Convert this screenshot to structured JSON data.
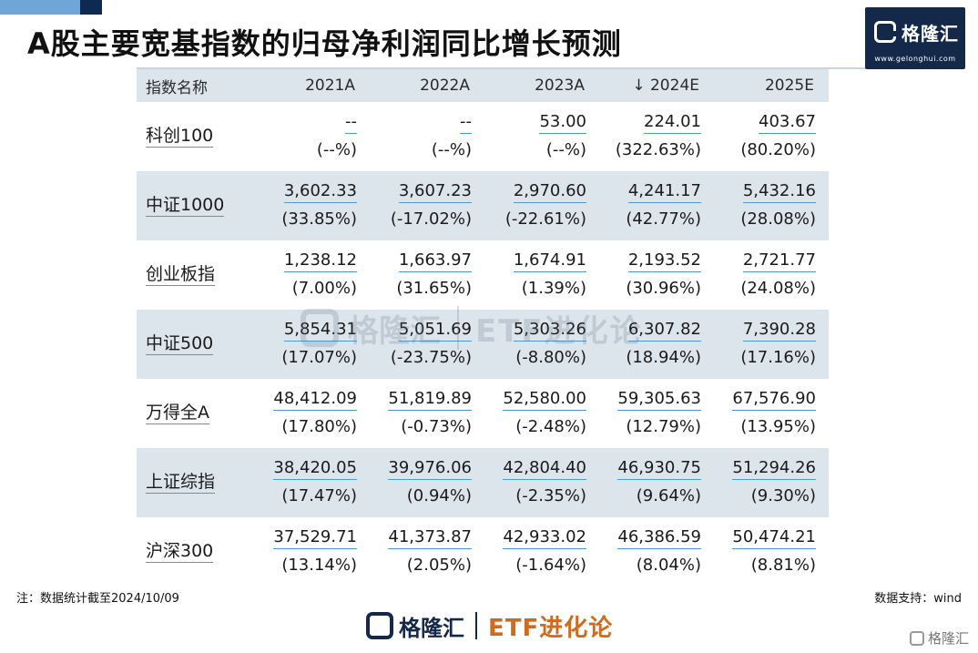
{
  "title": "A股主要宽基指数的归母净利润同比增长预测",
  "logo": {
    "name": "格隆汇",
    "url": "www.gelonghui.com"
  },
  "table": {
    "header": [
      "指数名称",
      "2021A",
      "2022A",
      "2023A",
      "↓ 2024E",
      "2025E"
    ],
    "rows": [
      {
        "name": "科创100",
        "values": [
          "--",
          "--",
          "53.00",
          "224.01",
          "403.67"
        ],
        "pcts": [
          "(--%)",
          "(--%)",
          "(--%)",
          "(322.63%)",
          "(80.20%)"
        ]
      },
      {
        "name": "中证1000",
        "values": [
          "3,602.33",
          "3,607.23",
          "2,970.60",
          "4,241.17",
          "5,432.16"
        ],
        "pcts": [
          "(33.85%)",
          "(-17.02%)",
          "(-22.61%)",
          "(42.77%)",
          "(28.08%)"
        ]
      },
      {
        "name": "创业板指",
        "values": [
          "1,238.12",
          "1,663.97",
          "1,674.91",
          "2,193.52",
          "2,721.77"
        ],
        "pcts": [
          "(7.00%)",
          "(31.65%)",
          "(1.39%)",
          "(30.96%)",
          "(24.08%)"
        ]
      },
      {
        "name": "中证500",
        "values": [
          "5,854.31",
          "5,051.69",
          "5,303.26",
          "6,307.82",
          "7,390.28"
        ],
        "pcts": [
          "(17.07%)",
          "(-23.75%)",
          "(-8.80%)",
          "(18.94%)",
          "(17.16%)"
        ]
      },
      {
        "name": "万得全A",
        "values": [
          "48,412.09",
          "51,819.89",
          "52,580.00",
          "59,305.63",
          "67,576.90"
        ],
        "pcts": [
          "(17.80%)",
          "(-0.73%)",
          "(-2.48%)",
          "(12.79%)",
          "(13.95%)"
        ]
      },
      {
        "name": "上证综指",
        "values": [
          "38,420.05",
          "39,976.06",
          "42,804.40",
          "46,930.75",
          "51,294.26"
        ],
        "pcts": [
          "(17.47%)",
          "(0.94%)",
          "(-2.35%)",
          "(9.64%)",
          "(9.30%)"
        ]
      },
      {
        "name": "沪深300",
        "values": [
          "37,529.71",
          "41,373.87",
          "42,933.02",
          "46,386.59",
          "50,474.21"
        ],
        "pcts": [
          "(13.14%)",
          "(2.05%)",
          "(-1.64%)",
          "(8.04%)",
          "(8.81%)"
        ]
      }
    ]
  },
  "watermark": {
    "brand": "格隆汇",
    "column": "ETF进化论"
  },
  "note": "注：数据统计截至2024/10/09",
  "source": "数据支持：wind",
  "footer": {
    "brand": "格隆汇",
    "column": "ETF进化论"
  },
  "corner_mark": "格隆汇",
  "colors": {
    "header_bg": "#dde5ec",
    "alt_row_bg": "#dde5ec",
    "underline": "#4a9bd1",
    "logo_bg": "#14284a",
    "accent_orange": "#d06a1e"
  }
}
